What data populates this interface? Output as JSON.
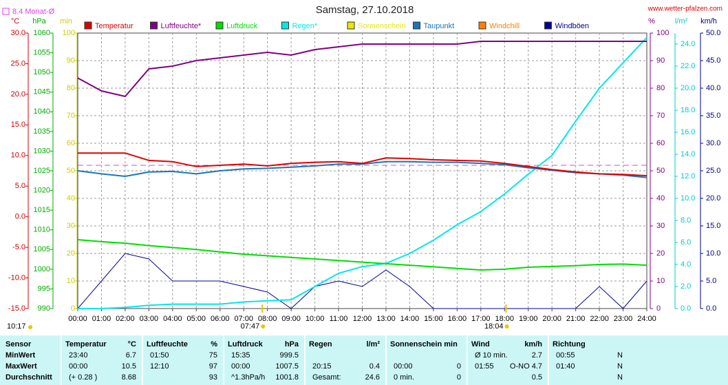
{
  "chart_data": {
    "type": "line",
    "title": "Samstag, 27.10.2018",
    "site": "www.wetter-pfalzen.com",
    "monthly_average": {
      "value": 8.4,
      "label": "Monat-Ø",
      "color": "#e040e0",
      "axis": "temp"
    },
    "sunrise": "07:47",
    "sunset": "18:04",
    "day_length": "10:17",
    "grid": true,
    "x": [
      "00:00",
      "01:00",
      "02:00",
      "03:00",
      "04:00",
      "05:00",
      "06:00",
      "07:00",
      "08:00",
      "09:00",
      "10:00",
      "11:00",
      "12:00",
      "13:00",
      "14:00",
      "15:00",
      "16:00",
      "17:00",
      "18:00",
      "19:00",
      "20:00",
      "21:00",
      "22:00",
      "23:00",
      "24:00"
    ],
    "axes": {
      "temp": {
        "unit": "°C",
        "color": "#cc0000",
        "ylim": [
          -15,
          30
        ],
        "yticks": [
          {
            "value": -15,
            "label": "-15.0"
          },
          {
            "value": -10,
            "label": "-10.0"
          },
          {
            "value": -5,
            "label": "-5.0"
          },
          {
            "value": 0,
            "label": "0.0"
          },
          {
            "value": 5,
            "label": "5.0"
          },
          {
            "value": 10,
            "label": "10.0"
          },
          {
            "value": 15,
            "label": "15.0"
          },
          {
            "value": 20,
            "label": "20.0"
          },
          {
            "value": 25,
            "label": "25.0"
          },
          {
            "value": 30,
            "label": "30.0"
          }
        ]
      },
      "pressure": {
        "unit": "hPa",
        "color": "#00aa00",
        "ylim": [
          990,
          1060
        ],
        "yticks": [
          990,
          995,
          1000,
          1005,
          1010,
          1015,
          1020,
          1025,
          1030,
          1035,
          1040,
          1045,
          1050,
          1055,
          1060
        ]
      },
      "minutes": {
        "unit": "min",
        "color": "#cccc00",
        "ylim": [
          0,
          100
        ],
        "yticks": [
          0,
          10,
          20,
          30,
          40,
          50,
          60,
          70,
          80,
          90,
          100
        ]
      },
      "humidity": {
        "unit": "%",
        "color": "#800080",
        "ylim": [
          0,
          100
        ],
        "yticks": [
          0,
          10,
          20,
          30,
          40,
          50,
          60,
          70,
          80,
          90,
          100
        ]
      },
      "rain": {
        "unit": "l/m²",
        "color": "#00cccc",
        "ylim": [
          0,
          25
        ],
        "yticks": [
          {
            "value": 0,
            "label": "0.0"
          },
          {
            "value": 2,
            "label": "2.0"
          },
          {
            "value": 4,
            "label": "4.0"
          },
          {
            "value": 6,
            "label": "6.0"
          },
          {
            "value": 8,
            "label": "8.0"
          },
          {
            "value": 10,
            "label": "10.0"
          },
          {
            "value": 12,
            "label": "12.0"
          },
          {
            "value": 14,
            "label": "14.0"
          },
          {
            "value": 16,
            "label": "16.0"
          },
          {
            "value": 18,
            "label": "18.0"
          },
          {
            "value": 20,
            "label": "20.0"
          },
          {
            "value": 22,
            "label": "22.0"
          },
          {
            "value": 24,
            "label": "24.0"
          }
        ]
      },
      "wind": {
        "unit": "km/h",
        "color": "#000080",
        "ylim": [
          0,
          50
        ],
        "yticks": [
          {
            "value": 0,
            "label": "0.0"
          },
          {
            "value": 5,
            "label": "5.0"
          },
          {
            "value": 10,
            "label": "10.0"
          },
          {
            "value": 15,
            "label": "15.0"
          },
          {
            "value": 20,
            "label": "20.0"
          },
          {
            "value": 25,
            "label": "25.0"
          },
          {
            "value": 30,
            "label": "30.0"
          },
          {
            "value": 35,
            "label": "35.0"
          },
          {
            "value": 40,
            "label": "40.0"
          },
          {
            "value": 45,
            "label": "45.0"
          },
          {
            "value": 50,
            "label": "50.0"
          }
        ]
      }
    },
    "series": [
      {
        "name": "Temperatur",
        "color": "#dd0000",
        "axis": "temp",
        "values": [
          10.4,
          10.4,
          10.4,
          9.2,
          9.0,
          8.2,
          8.4,
          8.6,
          8.3,
          8.7,
          8.9,
          9.0,
          8.7,
          9.6,
          9.5,
          9.3,
          9.2,
          9.1,
          8.7,
          8.2,
          7.7,
          7.3,
          7.0,
          6.9,
          6.7
        ]
      },
      {
        "name": "Luftfeuchte*",
        "color": "#800080",
        "axis": "humidity",
        "values": [
          83.7,
          79,
          77,
          87,
          88,
          90,
          91,
          92,
          93,
          92,
          94,
          95,
          96,
          96,
          96,
          96,
          96,
          97,
          97,
          97,
          97,
          97,
          97,
          97,
          97
        ]
      },
      {
        "name": "Luftdruck",
        "color": "#00dd00",
        "axis": "pressure",
        "values": [
          1007.5,
          1007.0,
          1006.6,
          1006.0,
          1005.5,
          1005.0,
          1004.4,
          1003.8,
          1003.4,
          1003.0,
          1002.6,
          1002.2,
          1001.8,
          1001.4,
          1001.0,
          1000.6,
          1000.2,
          999.8,
          1000.0,
          1000.5,
          1000.7,
          1000.9,
          1001.2,
          1001.3,
          1001.0
        ]
      },
      {
        "name": "Regen*",
        "color": "#00e8e8",
        "axis": "rain",
        "values": [
          0,
          0,
          0.1,
          0.3,
          0.4,
          0.4,
          0.4,
          0.6,
          0.7,
          0.8,
          2.0,
          3.2,
          3.8,
          4.1,
          5.0,
          6.2,
          7.6,
          8.8,
          10.4,
          12.2,
          13.9,
          17.0,
          20.0,
          22.3,
          24.6
        ]
      },
      {
        "name": "Sonnenschein",
        "color": "#e8e800",
        "axis": "minutes",
        "values": [
          null,
          null,
          null,
          null,
          null,
          null,
          null,
          null,
          null,
          null,
          null,
          null,
          null,
          null,
          null,
          null,
          null,
          null,
          null,
          null,
          null,
          null,
          null,
          null,
          null
        ]
      },
      {
        "name": "Taupunkt",
        "color": "#1a75bb",
        "axis": "temp",
        "values": [
          7.5,
          7.0,
          6.6,
          7.3,
          7.4,
          7.0,
          7.5,
          7.8,
          7.9,
          8.1,
          8.3,
          8.6,
          8.6,
          9.0,
          9.0,
          8.9,
          8.9,
          8.7,
          8.5,
          8.0,
          7.6,
          7.2,
          7.0,
          6.8,
          6.4
        ]
      },
      {
        "name": "Windchill",
        "color": "#ff8000",
        "axis": "temp",
        "values": [
          null,
          null,
          null,
          null,
          null,
          null,
          null,
          null,
          null,
          null,
          null,
          null,
          null,
          null,
          null,
          null,
          null,
          null,
          null,
          null,
          null,
          null,
          null,
          null,
          null
        ]
      },
      {
        "name": "Windböen",
        "color": "#000099",
        "axis": "wind",
        "values": [
          0,
          5,
          10,
          9,
          5,
          5,
          5,
          4,
          3,
          0,
          4,
          5,
          4,
          7,
          4,
          0,
          0,
          0,
          0,
          0,
          0,
          0,
          4,
          0,
          5
        ]
      }
    ]
  },
  "table": {
    "header": [
      "Sensor",
      "Temperatur",
      "°C",
      "Luftfeuchte",
      "%",
      "Luftdruck",
      "hPa",
      "Regen",
      "l/m²",
      "Sonnenschein min",
      "Wind",
      "km/h",
      "Richtung"
    ],
    "rows": [
      [
        "MinWert",
        "23:40",
        "6.7",
        "01:50",
        "75",
        "15:35",
        "999.5",
        null,
        null,
        null,
        null,
        "Ø 10 min.",
        "2.7",
        "00:55",
        "N"
      ],
      [
        "MaxWert",
        "00:00",
        "10.5",
        "12:10",
        "97",
        "00:00",
        "1007.5",
        "20:15",
        "0.4",
        "00:00",
        "0",
        "01:55",
        "O-NO 4.7",
        "01:40",
        "N"
      ],
      [
        "Durchschnitt",
        "(+ 0.28 )",
        "8.68",
        null,
        "93",
        "^1.3hPa/h",
        "1001.8",
        "Gesamt:",
        "24.6",
        "0 min.",
        "0",
        null,
        "0.5",
        null,
        "N"
      ]
    ]
  }
}
